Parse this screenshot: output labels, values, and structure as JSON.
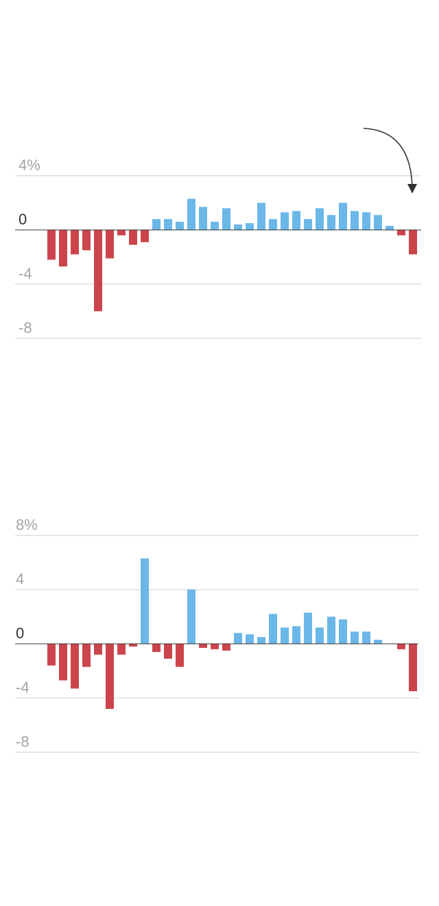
{
  "colors": {
    "positive": "#6bb7e8",
    "negative": "#cc444b",
    "grid": "#cccccc",
    "baseline": "#333333",
    "tick_text": "#a3a3a3",
    "arrow": "#333333"
  },
  "chart_data": [
    {
      "type": "bar",
      "title": "",
      "xlabel": "",
      "ylabel": "",
      "ylim": [
        -8,
        4
      ],
      "grid": true,
      "y_ticks": [
        4,
        0,
        -4,
        -8
      ],
      "y_tick_labels": [
        "4%",
        "0",
        "-4",
        "-8"
      ],
      "annotation": "curved arrow pointing to the last bar",
      "values": [
        -2.2,
        -2.7,
        -1.8,
        -1.5,
        -6.0,
        -2.1,
        -0.4,
        -1.1,
        -0.9,
        0.8,
        0.8,
        0.6,
        2.3,
        1.7,
        0.6,
        1.6,
        0.4,
        0.5,
        2.0,
        0.8,
        1.3,
        1.4,
        0.8,
        1.6,
        1.1,
        2.0,
        1.4,
        1.3,
        1.1,
        0.3,
        -0.4,
        -1.8
      ]
    },
    {
      "type": "bar",
      "title": "",
      "xlabel": "",
      "ylabel": "",
      "ylim": [
        -8,
        8
      ],
      "grid": true,
      "y_ticks": [
        8,
        4,
        0,
        -4,
        -8
      ],
      "y_tick_labels": [
        "8%",
        "4",
        "0",
        "-4",
        "-8"
      ],
      "values": [
        -1.6,
        -2.7,
        -3.3,
        -1.7,
        -0.8,
        -4.8,
        -0.8,
        -0.2,
        6.3,
        -0.6,
        -1.1,
        -1.7,
        4.0,
        -0.3,
        -0.4,
        -0.5,
        0.8,
        0.7,
        0.5,
        2.2,
        1.2,
        1.3,
        2.3,
        1.2,
        2.0,
        1.8,
        0.9,
        0.9,
        0.3,
        0.0,
        -0.4,
        -3.5
      ]
    }
  ]
}
